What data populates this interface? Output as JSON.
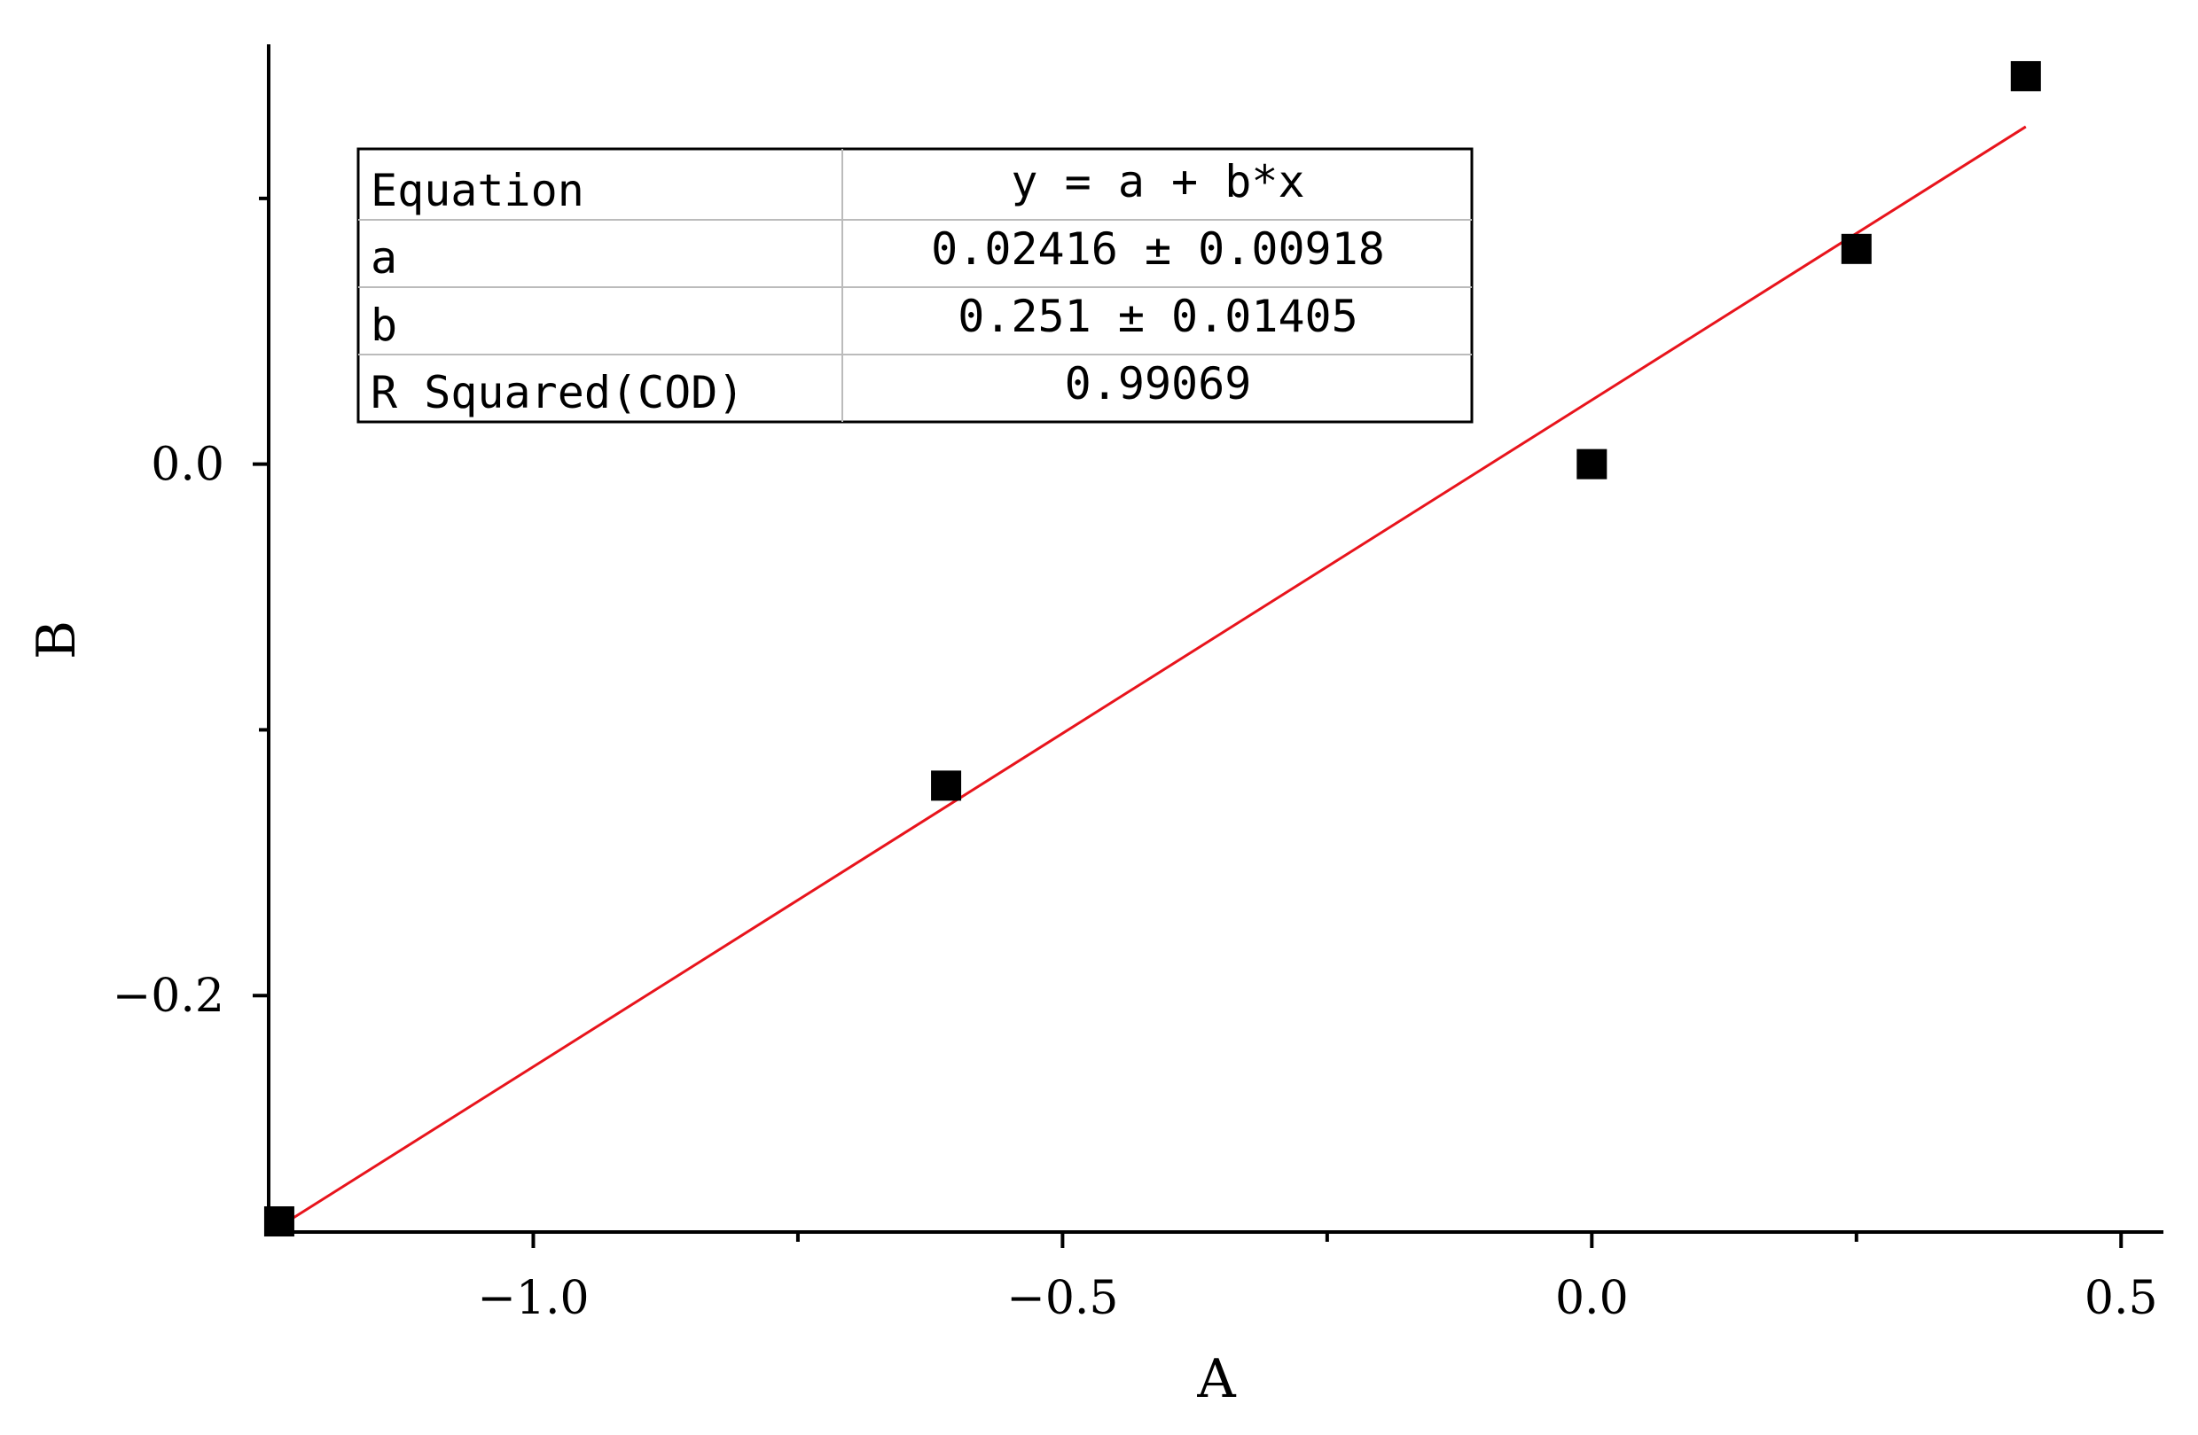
{
  "chart_data": {
    "type": "scatter",
    "xlabel": "A",
    "ylabel": "B",
    "xlim": [
      -1.25,
      0.54
    ],
    "ylim": [
      -0.289,
      0.158
    ],
    "x_ticks": [
      -1.0,
      -0.5,
      0.0,
      0.5
    ],
    "x_tick_labels": [
      "−1.0",
      "−0.5",
      "0.0",
      "0.5"
    ],
    "x_minor_ticks": [
      -0.75,
      -0.25,
      0.25
    ],
    "y_ticks": [
      0.0,
      -0.2
    ],
    "y_tick_labels": [
      "0.0",
      "−0.2"
    ],
    "y_minor_ticks": [
      0.1,
      -0.1
    ],
    "grid": false,
    "series": [
      {
        "kind": "points",
        "marker": "square",
        "color": "#000000",
        "x": [
          -1.24,
          -0.61,
          0.0,
          0.25,
          0.41
        ],
        "y": [
          -0.285,
          -0.121,
          0.0,
          0.081,
          0.146
        ]
      },
      {
        "kind": "fit-line",
        "color": "#e8141c",
        "x": [
          -1.24,
          0.41
        ],
        "y": [
          -0.287,
          0.127
        ]
      }
    ],
    "stats_table": {
      "rows": [
        {
          "label": "Equation",
          "value": "y = a + b*x"
        },
        {
          "label": "a",
          "value": "0.02416 ± 0.00918"
        },
        {
          "label": "b",
          "value": "0.251 ± 0.01405"
        },
        {
          "label": "R Squared(COD)",
          "value": "0.99069"
        }
      ]
    }
  }
}
